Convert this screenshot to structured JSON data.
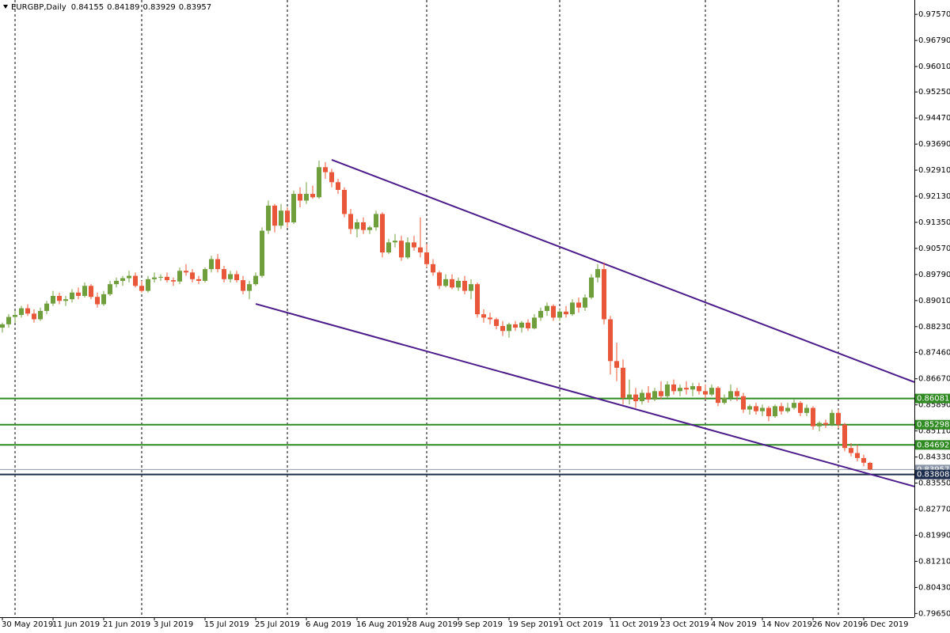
{
  "chart_data": {
    "type": "candlestick",
    "title": "EURGBP,Daily",
    "categories": [
      "30 May 2019",
      null,
      null,
      null,
      null,
      null,
      null,
      null,
      "11 Jun 2019",
      null,
      null,
      null,
      null,
      null,
      null,
      null,
      "21 Jun 2019",
      null,
      null,
      null,
      null,
      null,
      null,
      null,
      "3 Jul 2019",
      null,
      null,
      null,
      null,
      null,
      null,
      null,
      "15 Jul 2019",
      null,
      null,
      null,
      null,
      null,
      null,
      null,
      "25 Jul 2019",
      null,
      null,
      null,
      null,
      null,
      null,
      null,
      "6 Aug 2019",
      null,
      null,
      null,
      null,
      null,
      null,
      null,
      "16 Aug 2019",
      null,
      null,
      null,
      null,
      null,
      null,
      null,
      "28 Aug 2019",
      null,
      null,
      null,
      null,
      null,
      null,
      null,
      "9 Sep 2019",
      null,
      null,
      null,
      null,
      null,
      null,
      null,
      "19 Sep 2019",
      null,
      null,
      null,
      null,
      null,
      null,
      null,
      "1 Oct 2019",
      null,
      null,
      null,
      null,
      null,
      null,
      null,
      "11 Oct 2019",
      null,
      null,
      null,
      null,
      null,
      null,
      null,
      "23 Oct 2019",
      null,
      null,
      null,
      null,
      null,
      null,
      null,
      "4 Nov 2019",
      null,
      null,
      null,
      null,
      null,
      null,
      null,
      "14 Nov 2019",
      null,
      null,
      null,
      null,
      null,
      null,
      null,
      "26 Nov 2019",
      null,
      null,
      null,
      null,
      null,
      null,
      null,
      "6 Dec 2019",
      null
    ],
    "ohlc": [
      [
        0.882,
        0.8835,
        0.8805,
        0.883
      ],
      [
        0.883,
        0.886,
        0.882,
        0.8852
      ],
      [
        0.8852,
        0.887,
        0.8835,
        0.8858
      ],
      [
        0.8858,
        0.8885,
        0.885,
        0.8878
      ],
      [
        0.8878,
        0.889,
        0.8855,
        0.8862
      ],
      [
        0.8862,
        0.8875,
        0.8835,
        0.8845
      ],
      [
        0.8845,
        0.888,
        0.884,
        0.887
      ],
      [
        0.887,
        0.89,
        0.886,
        0.8892
      ],
      [
        0.8892,
        0.893,
        0.8885,
        0.8915
      ],
      [
        0.8915,
        0.8925,
        0.889,
        0.89
      ],
      [
        0.89,
        0.8915,
        0.8885,
        0.8905
      ],
      [
        0.8905,
        0.8935,
        0.8895,
        0.8925
      ],
      [
        0.8925,
        0.894,
        0.8905,
        0.8915
      ],
      [
        0.8915,
        0.8955,
        0.891,
        0.8945
      ],
      [
        0.8945,
        0.895,
        0.8905,
        0.8912
      ],
      [
        0.8912,
        0.8925,
        0.888,
        0.889
      ],
      [
        0.889,
        0.893,
        0.8885,
        0.892
      ],
      [
        0.892,
        0.896,
        0.8915,
        0.895
      ],
      [
        0.895,
        0.897,
        0.894,
        0.896
      ],
      [
        0.896,
        0.8975,
        0.8945,
        0.8968
      ],
      [
        0.8968,
        0.899,
        0.8955,
        0.8975
      ],
      [
        0.8975,
        0.8985,
        0.894,
        0.8945
      ],
      [
        0.8945,
        0.896,
        0.8925,
        0.893
      ],
      [
        0.893,
        0.8975,
        0.8925,
        0.8965
      ],
      [
        0.8965,
        0.8985,
        0.8955,
        0.897
      ],
      [
        0.897,
        0.898,
        0.896,
        0.8972
      ],
      [
        0.8972,
        0.8985,
        0.8955,
        0.8962
      ],
      [
        0.8962,
        0.897,
        0.8945,
        0.8958
      ],
      [
        0.8958,
        0.9,
        0.895,
        0.899
      ],
      [
        0.899,
        0.901,
        0.8975,
        0.8985
      ],
      [
        0.8985,
        0.8995,
        0.8955,
        0.8965
      ],
      [
        0.8965,
        0.8975,
        0.895,
        0.896
      ],
      [
        0.896,
        0.9,
        0.8955,
        0.8995
      ],
      [
        0.8995,
        0.9035,
        0.8985,
        0.9025
      ],
      [
        0.9025,
        0.904,
        0.8985,
        0.8995
      ],
      [
        0.8995,
        0.9005,
        0.8955,
        0.8965
      ],
      [
        0.8965,
        0.899,
        0.8955,
        0.898
      ],
      [
        0.898,
        0.899,
        0.8955,
        0.8962
      ],
      [
        0.8962,
        0.8975,
        0.892,
        0.893
      ],
      [
        0.893,
        0.896,
        0.8905,
        0.895
      ],
      [
        0.895,
        0.8985,
        0.8945,
        0.8975
      ],
      [
        0.8975,
        0.912,
        0.897,
        0.911
      ],
      [
        0.911,
        0.92,
        0.91,
        0.9185
      ],
      [
        0.9185,
        0.919,
        0.9105,
        0.9125
      ],
      [
        0.9125,
        0.919,
        0.9115,
        0.917
      ],
      [
        0.917,
        0.918,
        0.912,
        0.9135
      ],
      [
        0.9135,
        0.923,
        0.913,
        0.922
      ],
      [
        0.922,
        0.924,
        0.918,
        0.92
      ],
      [
        0.92,
        0.9255,
        0.919,
        0.922
      ],
      [
        0.922,
        0.9245,
        0.9205,
        0.921
      ],
      [
        0.921,
        0.932,
        0.9205,
        0.93
      ],
      [
        0.93,
        0.9315,
        0.9265,
        0.9285
      ],
      [
        0.9285,
        0.9295,
        0.924,
        0.9255
      ],
      [
        0.9255,
        0.9265,
        0.922,
        0.9232
      ],
      [
        0.9232,
        0.924,
        0.915,
        0.916
      ],
      [
        0.916,
        0.9175,
        0.91,
        0.9115
      ],
      [
        0.9115,
        0.9145,
        0.909,
        0.9135
      ],
      [
        0.9135,
        0.915,
        0.91,
        0.9112
      ],
      [
        0.9112,
        0.9125,
        0.91,
        0.912
      ],
      [
        0.912,
        0.917,
        0.911,
        0.916
      ],
      [
        0.916,
        0.9165,
        0.903,
        0.9045
      ],
      [
        0.9045,
        0.9085,
        0.904,
        0.9075
      ],
      [
        0.9075,
        0.91,
        0.906,
        0.908
      ],
      [
        0.908,
        0.9095,
        0.902,
        0.903
      ],
      [
        0.903,
        0.909,
        0.9025,
        0.9075
      ],
      [
        0.9075,
        0.9095,
        0.905,
        0.906
      ],
      [
        0.906,
        0.915,
        0.903,
        0.9045
      ],
      [
        0.9045,
        0.907,
        0.9,
        0.901
      ],
      [
        0.901,
        0.9025,
        0.8975,
        0.8985
      ],
      [
        0.8985,
        0.899,
        0.8935,
        0.8945
      ],
      [
        0.8945,
        0.898,
        0.894,
        0.8965
      ],
      [
        0.8965,
        0.898,
        0.8935,
        0.894
      ],
      [
        0.894,
        0.897,
        0.893,
        0.896
      ],
      [
        0.896,
        0.8975,
        0.892,
        0.893
      ],
      [
        0.893,
        0.8965,
        0.8905,
        0.895
      ],
      [
        0.895,
        0.8955,
        0.885,
        0.886
      ],
      [
        0.886,
        0.8875,
        0.8835,
        0.885
      ],
      [
        0.885,
        0.8865,
        0.883,
        0.8845
      ],
      [
        0.8845,
        0.885,
        0.8815,
        0.8825
      ],
      [
        0.8825,
        0.884,
        0.8795,
        0.881
      ],
      [
        0.881,
        0.8835,
        0.879,
        0.883
      ],
      [
        0.883,
        0.884,
        0.881,
        0.882
      ],
      [
        0.882,
        0.884,
        0.8805,
        0.8835
      ],
      [
        0.8835,
        0.8845,
        0.881,
        0.8818
      ],
      [
        0.8818,
        0.886,
        0.8815,
        0.885
      ],
      [
        0.885,
        0.888,
        0.884,
        0.887
      ],
      [
        0.887,
        0.8895,
        0.8855,
        0.8885
      ],
      [
        0.8885,
        0.889,
        0.884,
        0.885
      ],
      [
        0.885,
        0.8875,
        0.884,
        0.8868
      ],
      [
        0.8868,
        0.8885,
        0.885,
        0.886
      ],
      [
        0.886,
        0.8905,
        0.8855,
        0.8895
      ],
      [
        0.8895,
        0.891,
        0.8865,
        0.888
      ],
      [
        0.888,
        0.892,
        0.887,
        0.891
      ],
      [
        0.891,
        0.898,
        0.8905,
        0.897
      ],
      [
        0.897,
        0.901,
        0.8955,
        0.8995
      ],
      [
        0.8995,
        0.9015,
        0.883,
        0.8845
      ],
      [
        0.8845,
        0.8855,
        0.868,
        0.872
      ],
      [
        0.872,
        0.8775,
        0.866,
        0.87
      ],
      [
        0.87,
        0.8725,
        0.859,
        0.861
      ],
      [
        0.861,
        0.8665,
        0.859,
        0.862
      ],
      [
        0.862,
        0.864,
        0.858,
        0.86
      ],
      [
        0.86,
        0.8635,
        0.859,
        0.8625
      ],
      [
        0.8625,
        0.8645,
        0.8595,
        0.8605
      ],
      [
        0.8605,
        0.864,
        0.86,
        0.863
      ],
      [
        0.863,
        0.866,
        0.8605,
        0.8615
      ],
      [
        0.8615,
        0.866,
        0.861,
        0.865
      ],
      [
        0.865,
        0.8665,
        0.862,
        0.863
      ],
      [
        0.863,
        0.865,
        0.8615,
        0.864
      ],
      [
        0.864,
        0.866,
        0.862,
        0.8635
      ],
      [
        0.8635,
        0.8655,
        0.8615,
        0.8645
      ],
      [
        0.8645,
        0.8655,
        0.862,
        0.863
      ],
      [
        0.863,
        0.865,
        0.8605,
        0.862
      ],
      [
        0.862,
        0.865,
        0.8615,
        0.864
      ],
      [
        0.864,
        0.8645,
        0.8585,
        0.8595
      ],
      [
        0.8595,
        0.862,
        0.859,
        0.861
      ],
      [
        0.861,
        0.865,
        0.86,
        0.863
      ],
      [
        0.863,
        0.864,
        0.86,
        0.8615
      ],
      [
        0.8615,
        0.8625,
        0.8565,
        0.8575
      ],
      [
        0.8575,
        0.859,
        0.856,
        0.8585
      ],
      [
        0.8585,
        0.8595,
        0.856,
        0.857
      ],
      [
        0.857,
        0.859,
        0.8555,
        0.858
      ],
      [
        0.858,
        0.8585,
        0.854,
        0.8555
      ],
      [
        0.8555,
        0.859,
        0.855,
        0.8585
      ],
      [
        0.8585,
        0.8595,
        0.856,
        0.857
      ],
      [
        0.857,
        0.8595,
        0.8565,
        0.858
      ],
      [
        0.858,
        0.8605,
        0.8575,
        0.8595
      ],
      [
        0.8595,
        0.86,
        0.8555,
        0.8565
      ],
      [
        0.8565,
        0.859,
        0.8555,
        0.858
      ],
      [
        0.858,
        0.8585,
        0.8515,
        0.8525
      ],
      [
        0.8525,
        0.854,
        0.851,
        0.8535
      ],
      [
        0.8535,
        0.8545,
        0.852,
        0.853
      ],
      [
        0.853,
        0.8575,
        0.8525,
        0.8565
      ],
      [
        0.8565,
        0.8575,
        0.852,
        0.853
      ],
      [
        0.853,
        0.8535,
        0.845,
        0.846
      ],
      [
        0.846,
        0.8475,
        0.8435,
        0.8445
      ],
      [
        0.8445,
        0.847,
        0.842,
        0.843
      ],
      [
        0.843,
        0.844,
        0.8405,
        0.8416
      ],
      [
        0.84155,
        0.84189,
        0.83929,
        0.83957
      ]
    ],
    "up_color": "#6f9e3c",
    "down_color": "#e8573a",
    "ylim": [
      0.7954,
      0.98
    ],
    "yticks": [
      {
        "value": 0.9757,
        "label": "0.97570"
      },
      {
        "value": 0.9679,
        "label": "0.96790"
      },
      {
        "value": 0.9601,
        "label": "0.96010"
      },
      {
        "value": 0.9525,
        "label": "0.95250"
      },
      {
        "value": 0.9447,
        "label": "0.94470"
      },
      {
        "value": 0.9369,
        "label": "0.93690"
      },
      {
        "value": 0.9291,
        "label": "0.92910"
      },
      {
        "value": 0.9213,
        "label": "0.92130"
      },
      {
        "value": 0.9135,
        "label": "0.91350"
      },
      {
        "value": 0.9057,
        "label": "0.90570"
      },
      {
        "value": 0.8979,
        "label": "0.89790"
      },
      {
        "value": 0.8901,
        "label": "0.89010"
      },
      {
        "value": 0.8823,
        "label": "0.88230"
      },
      {
        "value": 0.8746,
        "label": "0.87460"
      },
      {
        "value": 0.8667,
        "label": "0.86670"
      },
      {
        "value": 0.8589,
        "label": "0.85890"
      },
      {
        "value": 0.8511,
        "label": "0.85110"
      },
      {
        "value": 0.8433,
        "label": "0.84330"
      },
      {
        "value": 0.8355,
        "label": "0.83550"
      },
      {
        "value": 0.8277,
        "label": "0.82770"
      },
      {
        "value": 0.8199,
        "label": "0.81990"
      },
      {
        "value": 0.8121,
        "label": "0.81210"
      },
      {
        "value": 0.8043,
        "label": "0.80430"
      },
      {
        "value": 0.7965,
        "label": "0.79650"
      }
    ],
    "levels": [
      {
        "value": 0.86081,
        "color": "#2f8a22"
      },
      {
        "value": 0.85298,
        "color": "#2f8a22"
      },
      {
        "value": 0.84692,
        "color": "#2f8a22"
      },
      {
        "value": 0.83957,
        "color": "#8a96a8"
      },
      {
        "value": 0.83808,
        "color": "#1c2c4c"
      }
    ],
    "trendlines": [
      {
        "from": [
          52,
          0.9322
        ],
        "to": [
          144,
          0.8657
        ],
        "color": "#4b1b8a"
      },
      {
        "from": [
          40,
          0.8891
        ],
        "to": [
          144,
          0.8345
        ],
        "color": "#4b1b8a"
      }
    ]
  }
}
